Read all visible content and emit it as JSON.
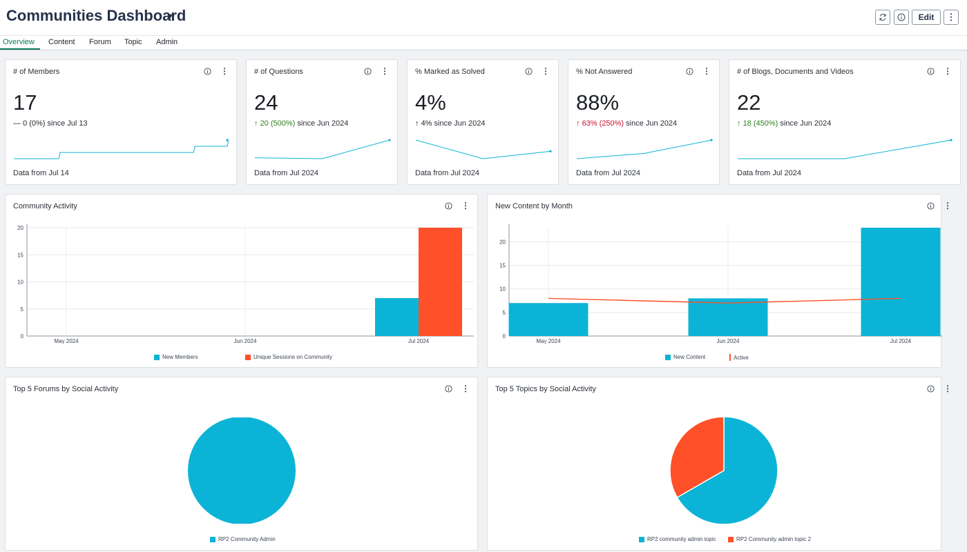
{
  "header": {
    "title": "Communities Dashboard",
    "edit_label": "Edit"
  },
  "tabs": [
    {
      "label": "Overview",
      "active": true
    },
    {
      "label": "Content",
      "active": false
    },
    {
      "label": "Forum",
      "active": false
    },
    {
      "label": "Topic",
      "active": false
    },
    {
      "label": "Admin",
      "active": false
    }
  ],
  "colors": {
    "teal": "#0bb4d6",
    "orange": "#ff5029",
    "green": "#2e7d1a",
    "red": "#c8102e",
    "accent": "#0b7a5a"
  },
  "kpis": [
    {
      "title": "# of Members",
      "value": "17",
      "arrow": "—",
      "change": "0 (0%)",
      "since": "since Jul 13",
      "trend": "neutral",
      "footer": "Data from Jul 14"
    },
    {
      "title": "# of Questions",
      "value": "24",
      "arrow": "↑",
      "change": "20 (500%)",
      "since": "since Jun 2024",
      "trend": "positive",
      "footer": "Data from Jul 2024"
    },
    {
      "title": "% Marked as Solved",
      "value": "4%",
      "arrow": "↑",
      "change": "4%",
      "since": "since Jun 2024",
      "trend": "neutral",
      "footer": "Data from Jul 2024"
    },
    {
      "title": "% Not Answered",
      "value": "88%",
      "arrow": "↑",
      "change": "63% (250%)",
      "since": "since Jun 2024",
      "trend": "negative",
      "footer": "Data from Jul 2024"
    },
    {
      "title": "# of Blogs, Documents and Videos",
      "value": "22",
      "arrow": "↑",
      "change": "18 (450%)",
      "since": "since Jun 2024",
      "trend": "positive",
      "footer": "Data from Jul 2024"
    }
  ],
  "panels": {
    "community_activity": {
      "title": "Community Activity"
    },
    "new_content": {
      "title": "New Content by Month"
    },
    "top_forums": {
      "title": "Top 5 Forums by Social Activity"
    },
    "top_topics": {
      "title": "Top 5 Topics by Social Activity"
    }
  },
  "chart_data": [
    {
      "type": "line",
      "title": "# of Members",
      "x": [
        1,
        2,
        3,
        4,
        5,
        6,
        7,
        8,
        9,
        10,
        11,
        12,
        13,
        14,
        15,
        16,
        17,
        18,
        19,
        20
      ],
      "values": [
        0,
        0,
        0,
        0,
        1,
        1,
        1,
        1,
        1,
        1,
        1,
        1,
        1,
        1,
        1,
        1,
        2,
        2,
        2,
        3
      ]
    },
    {
      "type": "line",
      "title": "# of Questions",
      "categories": [
        "May 2024",
        "Jun 2024",
        "Jul 2024"
      ],
      "values": [
        5,
        4,
        24
      ]
    },
    {
      "type": "line",
      "title": "% Marked as Solved",
      "categories": [
        "May 2024",
        "Jun 2024",
        "Jul 2024"
      ],
      "values": [
        10,
        0,
        4
      ]
    },
    {
      "type": "line",
      "title": "% Not Answered",
      "categories": [
        "May 2024",
        "Jun 2024",
        "Jul 2024"
      ],
      "values": [
        0,
        25,
        88
      ]
    },
    {
      "type": "line",
      "title": "# of Blogs, Documents and Videos",
      "categories": [
        "May 2024",
        "Jun 2024",
        "Jul 2024"
      ],
      "values": [
        4,
        4,
        22
      ]
    },
    {
      "type": "bar",
      "title": "Community Activity",
      "categories": [
        "May 2024",
        "Jun 2024",
        "Jul 2024"
      ],
      "series": [
        {
          "name": "New Members",
          "values": [
            0,
            0,
            7
          ],
          "color": "#0bb4d6"
        },
        {
          "name": "Unique Sessions on Community",
          "values": [
            0,
            0,
            20
          ],
          "color": "#ff5029"
        }
      ],
      "ylim": [
        0,
        20
      ],
      "yticks": [
        0,
        5,
        10,
        15,
        20
      ],
      "grid": true,
      "legend": "bottom"
    },
    {
      "type": "bar",
      "title": "New Content by Month",
      "categories": [
        "May 2024",
        "Jun 2024",
        "Jul 2024"
      ],
      "series": [
        {
          "name": "New Content",
          "type": "bar",
          "values": [
            7,
            8,
            23
          ],
          "color": "#0bb4d6"
        },
        {
          "name": "Active",
          "type": "line",
          "values": [
            8,
            7,
            8
          ],
          "color": "#ff5029"
        }
      ],
      "ylim": [
        0,
        23
      ],
      "yticks": [
        0,
        5,
        10,
        15,
        20
      ],
      "grid": true,
      "legend": "bottom"
    },
    {
      "type": "pie",
      "title": "Top 5 Forums by Social Activity",
      "slices": [
        {
          "name": "RP2 Community Admin",
          "value": 100,
          "color": "#0bb4d6"
        }
      ],
      "legend": "bottom"
    },
    {
      "type": "pie",
      "title": "Top 5 Topics by Social Activity",
      "slices": [
        {
          "name": "RP2 community admin topic",
          "value": 66.7,
          "color": "#0bb4d6"
        },
        {
          "name": "RP2 Community admin topic 2",
          "value": 33.3,
          "color": "#ff5029"
        }
      ],
      "legend": "bottom"
    }
  ]
}
